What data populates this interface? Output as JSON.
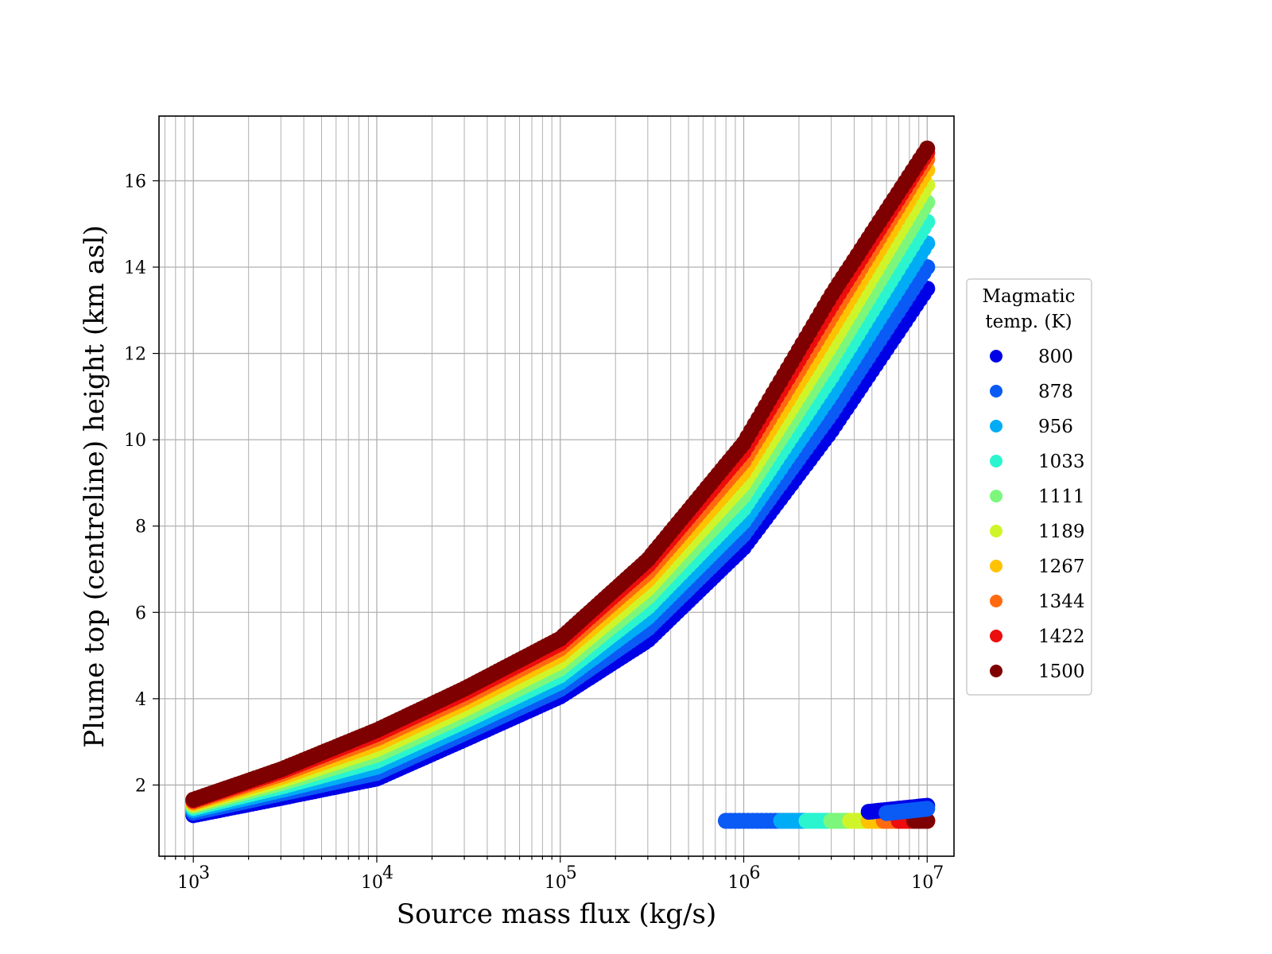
{
  "chart_data": {
    "type": "scatter",
    "xlabel": "Source mass flux (kg/s)",
    "ylabel": "Plume top (centreline) height (km asl)",
    "xscale": "log",
    "xlim": [
      650,
      14000000
    ],
    "ylim": [
      0.35,
      17.5
    ],
    "x_ticks": [
      {
        "base": "10",
        "exp": "3",
        "value": 1000
      },
      {
        "base": "10",
        "exp": "4",
        "value": 10000
      },
      {
        "base": "10",
        "exp": "5",
        "value": 100000
      },
      {
        "base": "10",
        "exp": "6",
        "value": 1000000
      },
      {
        "base": "10",
        "exp": "7",
        "value": 10000000
      }
    ],
    "y_ticks": [
      "2",
      "4",
      "6",
      "8",
      "10",
      "12",
      "14",
      "16"
    ],
    "grid": true,
    "legend": {
      "title_lines": [
        "Magmatic",
        "temp. (K)"
      ],
      "placement": "right",
      "entries": [
        {
          "label": "800",
          "color": "#0000e6"
        },
        {
          "label": "878",
          "color": "#0a5af5"
        },
        {
          "label": "956",
          "color": "#00acf5"
        },
        {
          "label": "1033",
          "color": "#2af5cf"
        },
        {
          "label": "1111",
          "color": "#7cf77c"
        },
        {
          "label": "1189",
          "color": "#cff52a"
        },
        {
          "label": "1267",
          "color": "#ffc200"
        },
        {
          "label": "1344",
          "color": "#ff6a10"
        },
        {
          "label": "1422",
          "color": "#ec0d0d"
        },
        {
          "label": "1500",
          "color": "#7f0000"
        }
      ]
    },
    "series": [
      {
        "temperature": 800,
        "color": "#0000e6",
        "points": [
          [
            1000,
            1.3
          ],
          [
            3000,
            1.7
          ],
          [
            10000,
            2.15
          ],
          [
            30000,
            3.05
          ],
          [
            100000,
            4.05
          ],
          [
            300000,
            5.35
          ],
          [
            1000000,
            7.5
          ],
          [
            3000000,
            10.2
          ],
          [
            10000000,
            13.5
          ]
        ],
        "lowbranch": [
          [
            800000,
            1.17
          ],
          [
            10000000,
            1.17
          ]
        ]
      },
      {
        "temperature": 878,
        "color": "#0a5af5",
        "points": [
          [
            1000,
            1.36
          ],
          [
            3000,
            1.8
          ],
          [
            10000,
            2.28
          ],
          [
            30000,
            3.2
          ],
          [
            100000,
            4.22
          ],
          [
            300000,
            5.62
          ],
          [
            1000000,
            7.8
          ],
          [
            3000000,
            10.6
          ],
          [
            10000000,
            14.0
          ]
        ],
        "lowbranch": [
          [
            800000,
            1.17
          ],
          [
            10000000,
            1.17
          ]
        ]
      },
      {
        "temperature": 956,
        "color": "#00acf5",
        "points": [
          [
            1000,
            1.42
          ],
          [
            3000,
            1.88
          ],
          [
            10000,
            2.42
          ],
          [
            30000,
            3.34
          ],
          [
            100000,
            4.38
          ],
          [
            300000,
            5.88
          ],
          [
            1000000,
            8.1
          ],
          [
            3000000,
            11.05
          ],
          [
            10000000,
            14.55
          ]
        ],
        "lowbranch": [
          [
            1600000,
            1.17
          ],
          [
            10000000,
            1.17
          ]
        ]
      },
      {
        "temperature": 1033,
        "color": "#2af5cf",
        "points": [
          [
            1000,
            1.47
          ],
          [
            3000,
            1.96
          ],
          [
            10000,
            2.56
          ],
          [
            30000,
            3.48
          ],
          [
            100000,
            4.54
          ],
          [
            300000,
            6.12
          ],
          [
            1000000,
            8.4
          ],
          [
            3000000,
            11.45
          ],
          [
            10000000,
            15.05
          ]
        ],
        "lowbranch": [
          [
            2200000,
            1.17
          ],
          [
            10000000,
            1.17
          ]
        ]
      },
      {
        "temperature": 1111,
        "color": "#7cf77c",
        "points": [
          [
            1000,
            1.51
          ],
          [
            3000,
            2.04
          ],
          [
            10000,
            2.7
          ],
          [
            30000,
            3.62
          ],
          [
            100000,
            4.7
          ],
          [
            300000,
            6.35
          ],
          [
            1000000,
            8.7
          ],
          [
            3000000,
            11.85
          ],
          [
            10000000,
            15.5
          ]
        ],
        "lowbranch": [
          [
            3000000,
            1.17
          ],
          [
            10000000,
            1.17
          ]
        ]
      },
      {
        "temperature": 1189,
        "color": "#cff52a",
        "points": [
          [
            1000,
            1.55
          ],
          [
            3000,
            2.11
          ],
          [
            10000,
            2.83
          ],
          [
            30000,
            3.76
          ],
          [
            100000,
            4.86
          ],
          [
            300000,
            6.55
          ],
          [
            1000000,
            8.98
          ],
          [
            3000000,
            12.2
          ],
          [
            10000000,
            15.9
          ]
        ],
        "lowbranch": [
          [
            3800000,
            1.17
          ],
          [
            10000000,
            1.17
          ]
        ]
      },
      {
        "temperature": 1267,
        "color": "#ffc200",
        "points": [
          [
            1000,
            1.58
          ],
          [
            3000,
            2.18
          ],
          [
            10000,
            2.96
          ],
          [
            30000,
            3.9
          ],
          [
            100000,
            5.02
          ],
          [
            300000,
            6.75
          ],
          [
            1000000,
            9.25
          ],
          [
            3000000,
            12.55
          ],
          [
            10000000,
            16.25
          ]
        ],
        "lowbranch": [
          [
            4800000,
            1.17
          ],
          [
            10000000,
            1.17
          ]
        ]
      },
      {
        "temperature": 1344,
        "color": "#ff6a10",
        "points": [
          [
            1000,
            1.61
          ],
          [
            3000,
            2.25
          ],
          [
            10000,
            3.08
          ],
          [
            30000,
            4.02
          ],
          [
            100000,
            5.16
          ],
          [
            300000,
            6.92
          ],
          [
            1000000,
            9.5
          ],
          [
            3000000,
            12.85
          ],
          [
            10000000,
            16.5
          ]
        ],
        "lowbranch": [
          [
            5800000,
            1.17
          ],
          [
            10000000,
            1.17
          ]
        ]
      },
      {
        "temperature": 1422,
        "color": "#ec0d0d",
        "points": [
          [
            1000,
            1.64
          ],
          [
            3000,
            2.31
          ],
          [
            10000,
            3.18
          ],
          [
            30000,
            4.13
          ],
          [
            100000,
            5.28
          ],
          [
            300000,
            7.08
          ],
          [
            1000000,
            9.72
          ],
          [
            3000000,
            13.1
          ],
          [
            10000000,
            16.65
          ]
        ],
        "lowbranch": [
          [
            7000000,
            1.17
          ],
          [
            10000000,
            1.17
          ]
        ]
      },
      {
        "temperature": 1500,
        "color": "#7f0000",
        "points": [
          [
            1000,
            1.66
          ],
          [
            3000,
            2.36
          ],
          [
            10000,
            3.27
          ],
          [
            30000,
            4.23
          ],
          [
            100000,
            5.39
          ],
          [
            300000,
            7.22
          ],
          [
            1000000,
            9.92
          ],
          [
            3000000,
            13.35
          ],
          [
            10000000,
            16.75
          ]
        ],
        "lowbranch": [
          [
            8500000,
            1.17
          ],
          [
            10000000,
            1.17
          ]
        ]
      }
    ],
    "upper_branch_extra": [
      {
        "temperature": 800,
        "color": "#0000e6",
        "points": [
          [
            4800000,
            1.38
          ],
          [
            10000000,
            1.52
          ]
        ]
      },
      {
        "temperature": 878,
        "color": "#0a5af5",
        "points": [
          [
            6000000,
            1.35
          ],
          [
            10000000,
            1.45
          ]
        ]
      }
    ]
  }
}
